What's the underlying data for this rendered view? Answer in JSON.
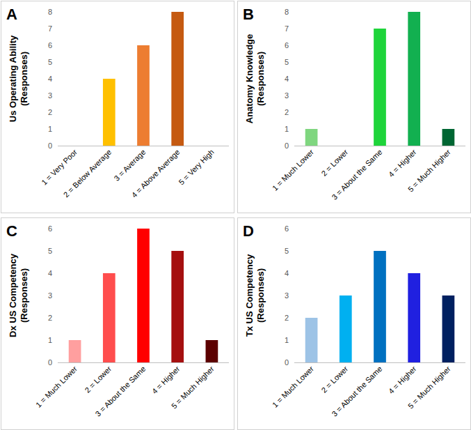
{
  "chart_data": [
    {
      "type": "bar",
      "panel": "A",
      "ylabel": "Us Operating Ability\n(Responses)",
      "categories": [
        "1 = Very Poor",
        "2 = Below Average",
        "3 = Average",
        "4 = Above Average",
        "5 = Very High"
      ],
      "values": [
        0,
        4,
        6,
        8,
        0
      ],
      "colors": [
        "#ffd966",
        "#ffc000",
        "#ed7d31",
        "#c55a11",
        "#843c0c"
      ],
      "ylim": [
        0,
        8
      ],
      "yticks": [
        0,
        1,
        2,
        3,
        4,
        5,
        6,
        7,
        8
      ],
      "grid": false
    },
    {
      "type": "bar",
      "panel": "B",
      "ylabel": "Anatomy Knowledge\n(Responses)",
      "categories": [
        "1 = Much Lower",
        "2 = Lower",
        "3 = About the Same",
        "4 = Higher",
        "5 = Much Higher"
      ],
      "values": [
        1,
        0,
        7,
        8,
        1
      ],
      "colors": [
        "#7fd67f",
        "#33cc55",
        "#1ed43a",
        "#12b050",
        "#006633"
      ],
      "ylim": [
        0,
        8
      ],
      "yticks": [
        0,
        1,
        2,
        3,
        4,
        5,
        6,
        7,
        8
      ],
      "grid": false
    },
    {
      "type": "bar",
      "panel": "C",
      "ylabel": "Dx US Competency\n(Responses)",
      "categories": [
        "1 = Much Lower",
        "2 = Lower",
        "3 = About the Same",
        "4 = Higher",
        "5 = Much Higher"
      ],
      "values": [
        1,
        4,
        6,
        5,
        1
      ],
      "colors": [
        "#ff9f9f",
        "#ff4d4d",
        "#ff0000",
        "#a50f0f",
        "#5c0000"
      ],
      "ylim": [
        0,
        6
      ],
      "yticks": [
        0,
        1,
        2,
        3,
        4,
        5,
        6
      ],
      "grid": false
    },
    {
      "type": "bar",
      "panel": "D",
      "ylabel": "Tx US Competency\n(Responses)",
      "categories": [
        "1 = Much Lower",
        "2 = Lower",
        "3 = About the Same",
        "4 = Higher",
        "5 = Much Higher"
      ],
      "values": [
        2,
        3,
        5,
        4,
        3
      ],
      "colors": [
        "#9dc3e6",
        "#00b0f0",
        "#0070c0",
        "#2020e0",
        "#002060"
      ],
      "ylim": [
        0,
        6
      ],
      "yticks": [
        0,
        1,
        2,
        3,
        4,
        5,
        6
      ],
      "grid": false
    }
  ]
}
